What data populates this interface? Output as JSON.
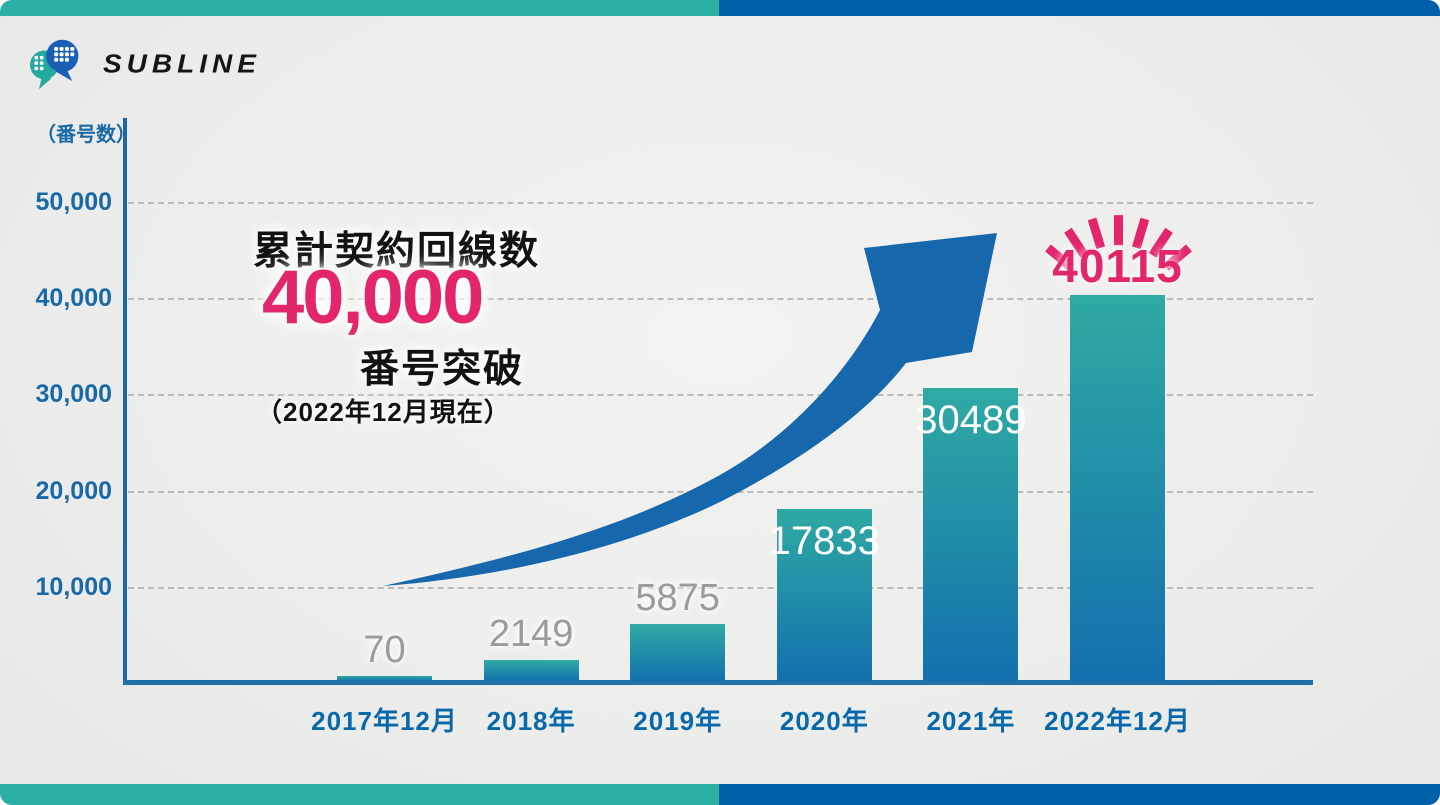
{
  "brand": {
    "name": "SUBLINE"
  },
  "annotation": {
    "line1": "累計契約回線数",
    "highlight": "40,000",
    "line2": "番号突破",
    "line3": "（2022年12月現在）"
  },
  "colors": {
    "teal": "#2baea3",
    "blue": "#0061a8",
    "bar_gradient_top": "#2faaa3",
    "bar_gradient_bottom": "#1370ae",
    "arrow_blue": "#1767ad",
    "pink": "#e3266b",
    "axis_blue": "#1b68a5",
    "ytick_blue": "#1a69a7",
    "xtick_blue": "#0768aa",
    "gray_value_label": "#9b9b9b",
    "background": "#edeeec"
  },
  "chart_data": {
    "type": "bar",
    "title": "累計契約回線数 40,000 番号突破（2022年12月現在）",
    "unit_label": "（番号数）",
    "categories": [
      "2017年12月",
      "2018年",
      "2019年",
      "2020年",
      "2021年",
      "2022年12月"
    ],
    "values": [
      70,
      2149,
      5875,
      17833,
      30489,
      40115
    ],
    "value_labels": [
      "70",
      "2149",
      "5875",
      "17833",
      "30489",
      "40115"
    ],
    "bar_label_styles": [
      "gray-above",
      "gray-above",
      "gray-above",
      "white-inside",
      "white-inside",
      "pink-above"
    ],
    "yticks": [
      10000,
      20000,
      30000,
      40000,
      50000
    ],
    "ytick_labels": [
      "10,000",
      "20,000",
      "30,000",
      "40,000",
      "50,000"
    ],
    "ylim": [
      0,
      55000
    ],
    "xlabel": "",
    "ylabel": "（番号数）",
    "grid": "dashed-horizontal",
    "legend": "none",
    "decorations": [
      "growth-arrow",
      "burst-rays-above-last-bar"
    ]
  }
}
